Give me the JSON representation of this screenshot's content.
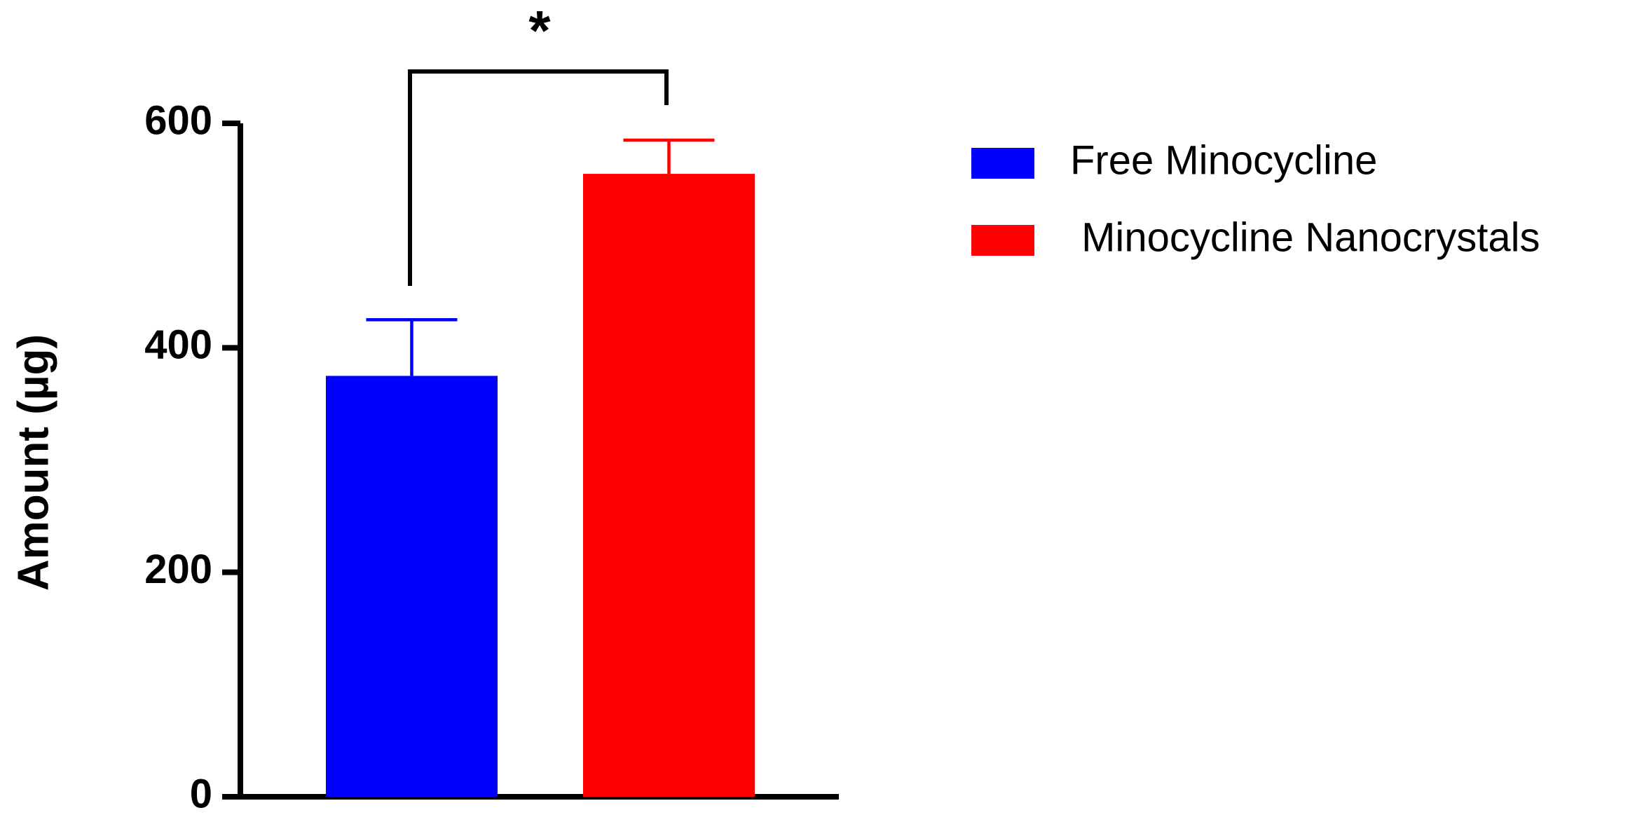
{
  "chart_data": {
    "type": "bar",
    "y_label": "Amount (µg)",
    "annotation": "*",
    "categories": [
      null
    ],
    "series": [
      {
        "name": "Free Minocycline",
        "color": "#0000ff",
        "values": [
          375
        ],
        "errors": [
          50
        ]
      },
      {
        "name": " Minocycline Nanocrystals",
        "color": "#ff0000",
        "values": [
          555
        ],
        "errors": [
          30
        ]
      }
    ],
    "ylim": [
      0,
      600
    ],
    "yticks": [
      0,
      200,
      400,
      600
    ],
    "grid": false,
    "legend": "right"
  }
}
